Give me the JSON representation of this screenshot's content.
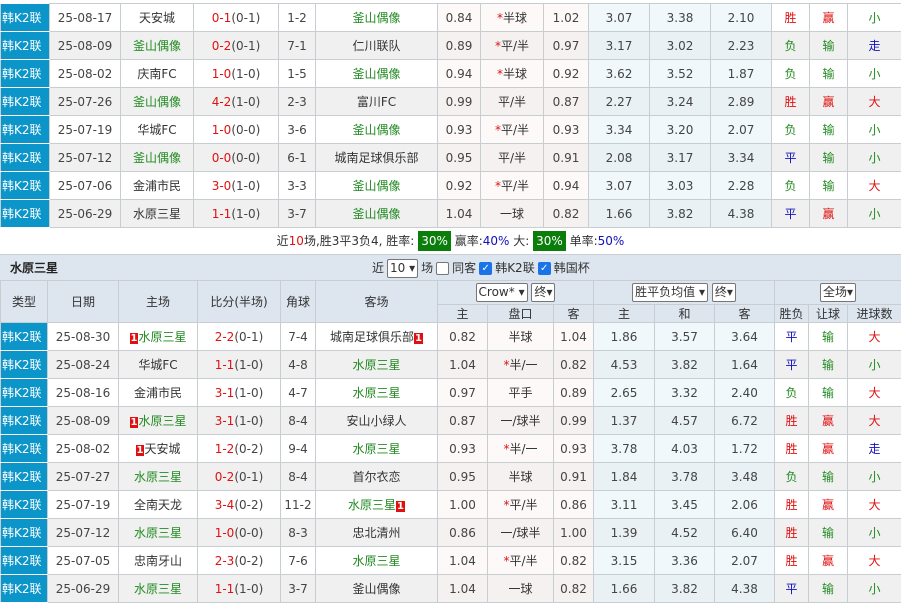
{
  "top_rows": [
    {
      "type": "韩K2联",
      "date": "25-08-17",
      "home": "天安城",
      "home_hl": false,
      "score": "0-1",
      "ht": "(0-1)",
      "corner": "1-2",
      "away": "釜山偶像",
      "away_hl": true,
      "ah": "0.84",
      "line": "半球",
      "star": true,
      "ac": "1.02",
      "eh": "3.07",
      "ed": "3.38",
      "ea": "2.10",
      "wdl": "胜",
      "hc": "赢",
      "ou": "小"
    },
    {
      "type": "韩K2联",
      "date": "25-08-09",
      "home": "釜山偶像",
      "home_hl": true,
      "score": "0-2",
      "ht": "(0-1)",
      "corner": "7-1",
      "away": "仁川联队",
      "away_hl": false,
      "ah": "0.89",
      "line": "平/半",
      "star": true,
      "ac": "0.97",
      "eh": "3.17",
      "ed": "3.02",
      "ea": "2.23",
      "wdl": "负",
      "hc": "输",
      "ou": "走"
    },
    {
      "type": "韩K2联",
      "date": "25-08-02",
      "home": "庆南FC",
      "home_hl": false,
      "score": "1-0",
      "ht": "(1-0)",
      "corner": "1-5",
      "away": "釜山偶像",
      "away_hl": true,
      "ah": "0.94",
      "line": "半球",
      "star": true,
      "ac": "0.92",
      "eh": "3.62",
      "ed": "3.52",
      "ea": "1.87",
      "wdl": "负",
      "hc": "输",
      "ou": "小"
    },
    {
      "type": "韩K2联",
      "date": "25-07-26",
      "home": "釜山偶像",
      "home_hl": true,
      "score": "4-2",
      "ht": "(1-0)",
      "corner": "2-3",
      "away": "富川FC",
      "away_hl": false,
      "ah": "0.99",
      "line": "平/半",
      "star": false,
      "ac": "0.87",
      "eh": "2.27",
      "ed": "3.24",
      "ea": "2.89",
      "wdl": "胜",
      "hc": "赢",
      "ou": "大"
    },
    {
      "type": "韩K2联",
      "date": "25-07-19",
      "home": "华城FC",
      "home_hl": false,
      "score": "1-0",
      "ht": "(0-0)",
      "corner": "3-6",
      "away": "釜山偶像",
      "away_hl": true,
      "ah": "0.93",
      "line": "平/半",
      "star": true,
      "ac": "0.93",
      "eh": "3.34",
      "ed": "3.20",
      "ea": "2.07",
      "wdl": "负",
      "hc": "输",
      "ou": "小"
    },
    {
      "type": "韩K2联",
      "date": "25-07-12",
      "home": "釜山偶像",
      "home_hl": true,
      "score": "0-0",
      "ht": "(0-0)",
      "corner": "6-1",
      "away": "城南足球俱乐部",
      "away_hl": false,
      "ah": "0.95",
      "line": "平/半",
      "star": false,
      "ac": "0.91",
      "eh": "2.08",
      "ed": "3.17",
      "ea": "3.34",
      "wdl": "平",
      "hc": "输",
      "ou": "小"
    },
    {
      "type": "韩K2联",
      "date": "25-07-06",
      "home": "金浦市民",
      "home_hl": false,
      "score": "3-0",
      "ht": "(1-0)",
      "corner": "3-3",
      "away": "釜山偶像",
      "away_hl": true,
      "ah": "0.92",
      "line": "平/半",
      "star": true,
      "ac": "0.94",
      "eh": "3.07",
      "ed": "3.03",
      "ea": "2.28",
      "wdl": "负",
      "hc": "输",
      "ou": "大"
    },
    {
      "type": "韩K2联",
      "date": "25-06-29",
      "home": "水原三星",
      "home_hl": false,
      "score": "1-1",
      "ht": "(1-0)",
      "corner": "3-7",
      "away": "釜山偶像",
      "away_hl": true,
      "ah": "1.04",
      "line": "一球",
      "star": false,
      "ac": "0.82",
      "eh": "1.66",
      "ed": "3.82",
      "ea": "4.38",
      "wdl": "平",
      "hc": "赢",
      "ou": "小"
    }
  ],
  "summary": {
    "p1": "近",
    "n": "10",
    "p2": "场,胜3平3负4, 胜率:",
    "win_rate": "30%",
    "p3": "赢率:",
    "cover_rate": "40%",
    "p4": "大:",
    "over_rate": "30%",
    "p5": "单率:",
    "odd_rate": "50%"
  },
  "section": {
    "title": "水原三星",
    "near": "近",
    "count": "10",
    "unit": "场",
    "same_label": "同客",
    "same_checked": false,
    "league1": "韩K2联",
    "league1_checked": true,
    "league2": "韩国杯",
    "league2_checked": true
  },
  "headers": {
    "type": "类型",
    "date": "日期",
    "home": "主场",
    "score": "比分(半场)",
    "corner": "角球",
    "away": "客场",
    "company": "Crow*",
    "final1": "终",
    "euro": "胜平负均值",
    "final2": "终",
    "period": "全场",
    "ah": "主",
    "line": "盘口",
    "ac": "客",
    "eh": "主",
    "ed": "和",
    "ea": "客",
    "wdl": "胜负",
    "hc": "让球",
    "ou": "进球数"
  },
  "bottom_rows": [
    {
      "type": "韩K2联",
      "date": "25-08-30",
      "home": "水原三星",
      "home_hl": true,
      "home_card": "1",
      "score": "2-2",
      "ht": "(0-1)",
      "corner": "7-4",
      "away": "城南足球俱乐部",
      "away_hl": false,
      "away_card": "1",
      "ah": "0.82",
      "line": "半球",
      "star": false,
      "ac": "1.04",
      "eh": "1.86",
      "ed": "3.57",
      "ea": "3.64",
      "wdl": "平",
      "hc": "输",
      "ou": "大"
    },
    {
      "type": "韩K2联",
      "date": "25-08-24",
      "home": "华城FC",
      "home_hl": false,
      "score": "1-1",
      "ht": "(1-0)",
      "corner": "4-8",
      "away": "水原三星",
      "away_hl": true,
      "ah": "1.04",
      "line": "半/一",
      "star": true,
      "ac": "0.82",
      "eh": "4.53",
      "ed": "3.82",
      "ea": "1.64",
      "wdl": "平",
      "hc": "输",
      "ou": "小"
    },
    {
      "type": "韩K2联",
      "date": "25-08-16",
      "home": "金浦市民",
      "home_hl": false,
      "score": "3-1",
      "ht": "(1-0)",
      "corner": "4-7",
      "away": "水原三星",
      "away_hl": true,
      "ah": "0.97",
      "line": "平手",
      "star": false,
      "ac": "0.89",
      "eh": "2.65",
      "ed": "3.32",
      "ea": "2.40",
      "wdl": "负",
      "hc": "输",
      "ou": "大"
    },
    {
      "type": "韩K2联",
      "date": "25-08-09",
      "home": "水原三星",
      "home_hl": true,
      "home_card": "1",
      "score": "3-1",
      "ht": "(1-0)",
      "corner": "8-4",
      "away": "安山小绿人",
      "away_hl": false,
      "ah": "0.87",
      "line": "一/球半",
      "star": false,
      "ac": "0.99",
      "eh": "1.37",
      "ed": "4.57",
      "ea": "6.72",
      "wdl": "胜",
      "hc": "赢",
      "ou": "大"
    },
    {
      "type": "韩K2联",
      "date": "25-08-02",
      "home": "天安城",
      "home_hl": false,
      "home_card": "1",
      "score": "1-2",
      "ht": "(0-2)",
      "corner": "9-4",
      "away": "水原三星",
      "away_hl": true,
      "ah": "0.93",
      "line": "半/一",
      "star": true,
      "ac": "0.93",
      "eh": "3.78",
      "ed": "4.03",
      "ea": "1.72",
      "wdl": "胜",
      "hc": "赢",
      "ou": "走"
    },
    {
      "type": "韩K2联",
      "date": "25-07-27",
      "home": "水原三星",
      "home_hl": true,
      "score": "0-2",
      "ht": "(0-1)",
      "corner": "8-4",
      "away": "首尔衣恋",
      "away_hl": false,
      "ah": "0.95",
      "line": "半球",
      "star": false,
      "ac": "0.91",
      "eh": "1.84",
      "ed": "3.78",
      "ea": "3.48",
      "wdl": "负",
      "hc": "输",
      "ou": "小"
    },
    {
      "type": "韩K2联",
      "date": "25-07-19",
      "home": "全南天龙",
      "home_hl": false,
      "score": "3-4",
      "ht": "(0-2)",
      "corner": "11-2",
      "away": "水原三星",
      "away_hl": true,
      "away_card": "1",
      "ah": "1.00",
      "line": "平/半",
      "star": true,
      "ac": "0.86",
      "eh": "3.11",
      "ed": "3.45",
      "ea": "2.06",
      "wdl": "胜",
      "hc": "赢",
      "ou": "大"
    },
    {
      "type": "韩K2联",
      "date": "25-07-12",
      "home": "水原三星",
      "home_hl": true,
      "score": "1-0",
      "ht": "(0-0)",
      "corner": "8-3",
      "away": "忠北清州",
      "away_hl": false,
      "ah": "0.86",
      "line": "一/球半",
      "star": false,
      "ac": "1.00",
      "eh": "1.39",
      "ed": "4.52",
      "ea": "6.40",
      "wdl": "胜",
      "hc": "输",
      "ou": "小"
    },
    {
      "type": "韩K2联",
      "date": "25-07-05",
      "home": "忠南牙山",
      "home_hl": false,
      "score": "2-3",
      "ht": "(0-2)",
      "corner": "7-6",
      "away": "水原三星",
      "away_hl": true,
      "ah": "1.04",
      "line": "平/半",
      "star": true,
      "ac": "0.82",
      "eh": "3.15",
      "ed": "3.36",
      "ea": "2.07",
      "wdl": "胜",
      "hc": "赢",
      "ou": "大"
    },
    {
      "type": "韩K2联",
      "date": "25-06-29",
      "home": "水原三星",
      "home_hl": true,
      "score": "1-1",
      "ht": "(1-0)",
      "corner": "3-7",
      "away": "釜山偶像",
      "away_hl": false,
      "ah": "1.04",
      "line": "一球",
      "star": false,
      "ac": "0.82",
      "eh": "1.66",
      "ed": "3.82",
      "ea": "4.38",
      "wdl": "平",
      "hc": "输",
      "ou": "小"
    }
  ],
  "colors": {
    "league_bg": "#0b95c8",
    "win": "#e01010",
    "lose": "#228b22",
    "draw": "#1010c0",
    "highlight_team": "#228b22",
    "rate_box": "#0a7d0a"
  }
}
